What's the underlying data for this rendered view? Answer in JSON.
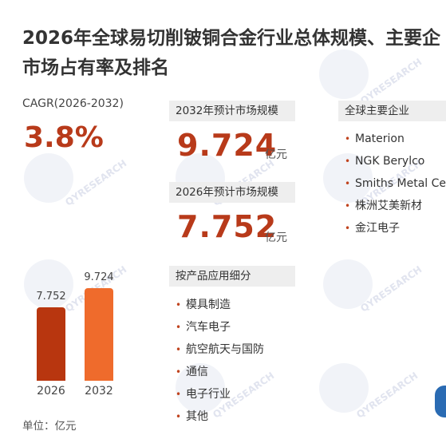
{
  "title_line1": "2026年全球易切削铍铜合金行业总体规模、主要企",
  "title_line2": "市场占有率及排名",
  "cagr": {
    "label": "CAGR(2026-2032)",
    "value": "3.8%"
  },
  "forecast_2032": {
    "label": "2032年预计市场规模",
    "value": "9.724",
    "unit": "亿元"
  },
  "forecast_2026": {
    "label": "2026年预计市场规模",
    "value": "7.752",
    "unit": "亿元"
  },
  "applications": {
    "label": "按产品应用细分",
    "items": [
      "模具制造",
      "汽车电子",
      "航空航天与国防",
      "通信",
      "电子行业",
      "其他"
    ]
  },
  "companies": {
    "label": "全球主要企业",
    "items": [
      "Materion",
      "NGK Berylco",
      "Smiths Metal Cen",
      "株洲艾美新材",
      "金江电子"
    ]
  },
  "watermark": "QYRESEARCH",
  "chart_data": {
    "type": "bar",
    "categories": [
      "2026",
      "2032"
    ],
    "values": [
      7.752,
      9.724
    ],
    "value_labels": [
      "7.752",
      "9.724"
    ],
    "colors": [
      "#b8360f",
      "#ef6b2c"
    ],
    "ylim": [
      0,
      9.724
    ],
    "unit_note": "单位：亿元"
  }
}
